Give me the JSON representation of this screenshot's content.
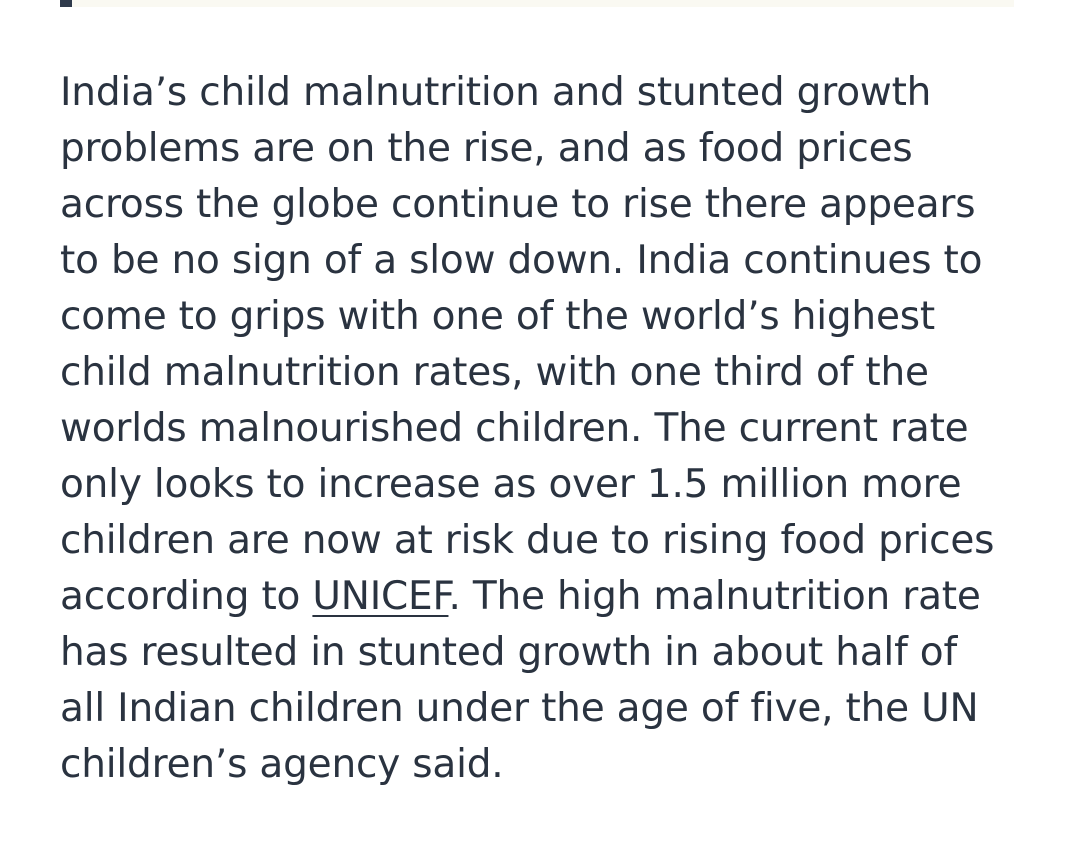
{
  "article": {
    "lines": [
      "India’s child malnutrition and stunted growth",
      "problems are on the rise, and as food prices",
      "across the globe continue to rise there appears",
      "to be no sign of a slow down. India continues to",
      "come to grips with one of the world’s highest",
      "child malnutrition rates, with one third of the",
      "worlds malnourished children. The current rate",
      "only looks to increase as over 1.5 million more",
      "children are now at risk due to rising food prices"
    ],
    "line10_before": "according to ",
    "link_text": "UNICEF",
    "line10_after": ". The high malnutrition rate",
    "lines_after": [
      "has resulted in stunted growth in about half of",
      "all Indian children under the age of five, the UN",
      "children’s agency said."
    ]
  }
}
